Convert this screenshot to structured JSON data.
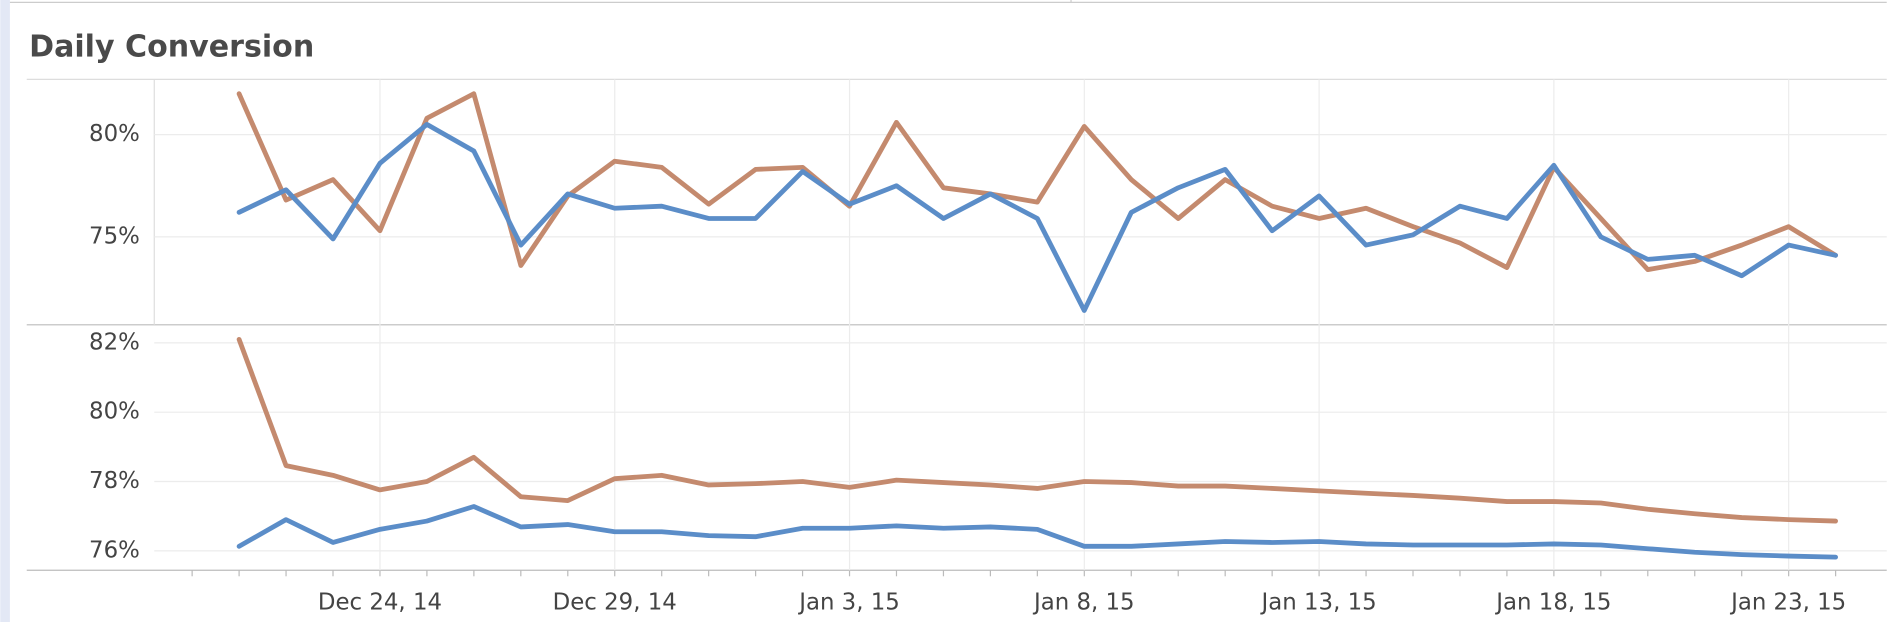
{
  "chart_data": [
    {
      "type": "line",
      "title": "Daily Conversion",
      "ylim": [
        70.7,
        82.7
      ],
      "yticks": [
        {
          "value": 80,
          "label": "80%"
        },
        {
          "value": 75,
          "label": "75%"
        }
      ],
      "grid": true,
      "series": [
        {
          "color": "#c48a6e",
          "values": [
            82.0,
            76.8,
            77.8,
            75.3,
            80.8,
            82.0,
            73.6,
            77.0,
            78.7,
            78.4,
            76.6,
            78.3,
            78.4,
            76.5,
            80.6,
            77.4,
            77.1,
            76.7,
            80.4,
            77.8,
            75.9,
            77.8,
            76.5,
            75.9,
            76.4,
            75.5,
            74.7,
            73.5,
            78.4,
            75.9,
            73.4,
            73.8,
            74.6,
            75.5,
            74.1
          ]
        },
        {
          "color": "#5b8dc8",
          "values": [
            76.2,
            77.3,
            74.9,
            78.6,
            80.5,
            79.2,
            74.6,
            77.1,
            76.4,
            76.5,
            75.9,
            75.9,
            78.2,
            76.6,
            77.5,
            75.9,
            77.1,
            75.9,
            71.4,
            76.2,
            77.4,
            78.3,
            75.3,
            77.0,
            74.6,
            75.1,
            76.5,
            75.9,
            78.5,
            75.0,
            73.9,
            74.1,
            73.1,
            74.6,
            74.1
          ]
        }
      ]
    },
    {
      "type": "line",
      "categories": [
        null,
        null,
        null,
        "Dec 24, 14",
        null,
        null,
        null,
        null,
        "Dec 29, 14",
        null,
        null,
        null,
        null,
        "Jan 3, 15",
        null,
        null,
        null,
        null,
        "Jan 8, 15",
        null,
        null,
        null,
        null,
        "Jan 13, 15",
        null,
        null,
        null,
        null,
        "Jan 18, 15",
        null,
        null,
        null,
        null,
        "Jan 23, 15",
        null
      ],
      "ylim": [
        75.44,
        82.52
      ],
      "yticks": [
        {
          "value": 82,
          "label": "82%"
        },
        {
          "value": 80,
          "label": "80%"
        },
        {
          "value": 78,
          "label": "78%"
        },
        {
          "value": 76,
          "label": "76%"
        }
      ],
      "grid": true,
      "series": [
        {
          "color": "#c48a6e",
          "values": [
            82.1,
            78.46,
            78.18,
            77.76,
            78.0,
            78.7,
            77.56,
            77.45,
            78.08,
            78.18,
            77.9,
            77.94,
            78.0,
            77.83,
            78.04,
            77.97,
            77.9,
            77.8,
            78.0,
            77.97,
            77.87,
            77.87,
            77.8,
            77.73,
            77.66,
            77.6,
            77.52,
            77.42,
            77.42,
            77.38,
            77.2,
            77.07,
            76.96,
            76.9,
            76.86
          ]
        },
        {
          "color": "#5b8dc8",
          "values": [
            76.13,
            76.9,
            76.24,
            76.62,
            76.86,
            77.28,
            76.69,
            76.76,
            76.55,
            76.55,
            76.44,
            76.41,
            76.65,
            76.65,
            76.72,
            76.65,
            76.69,
            76.62,
            76.13,
            76.13,
            76.2,
            76.27,
            76.24,
            76.27,
            76.2,
            76.17,
            76.17,
            76.17,
            76.2,
            76.17,
            76.06,
            75.96,
            75.89,
            75.85,
            75.82
          ]
        }
      ]
    }
  ]
}
